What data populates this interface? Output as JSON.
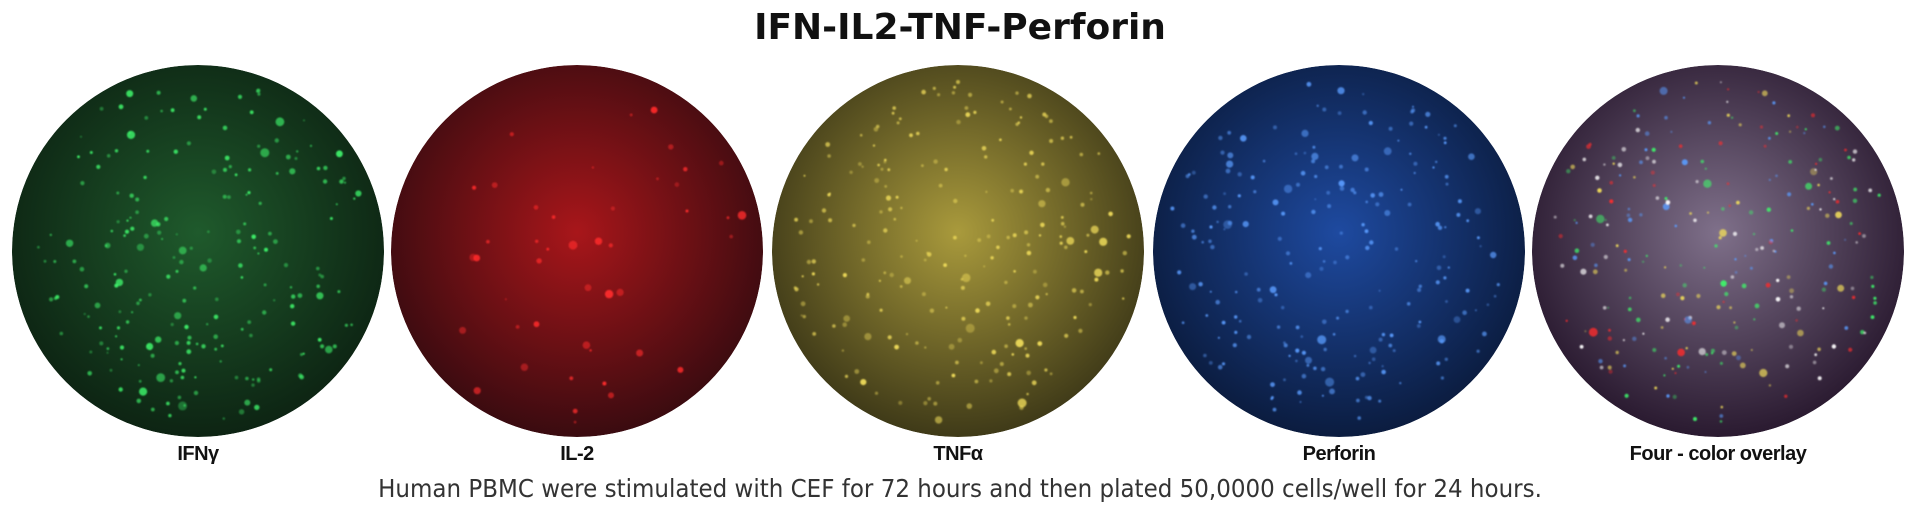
{
  "title": "IFN-IL2-TNF-Perforin",
  "caption": "Human PBMC were stimulated with CEF for 72 hours and then plated 50,0000 cells/well for 24 hours.",
  "wells": [
    {
      "label": "IFNγ",
      "bg_center": "#1f5a2c",
      "bg_edge": "#0d2413",
      "spot": "#3ef26a"
    },
    {
      "label": "IL-2",
      "bg_center": "#a8161a",
      "bg_edge": "#3a0b10",
      "spot": "#ff2a2a"
    },
    {
      "label": "TNFα",
      "bg_center": "#a99a3c",
      "bg_edge": "#3f3a18",
      "spot": "#f0dc5a"
    },
    {
      "label": "Perforin",
      "bg_center": "#1e4aa0",
      "bg_edge": "#0b1c3f",
      "spot": "#5a9cff"
    },
    {
      "label": "Four - color overlay",
      "bg_center": "#7f708a",
      "bg_edge": "#2a1a30",
      "spot": "#ffffff"
    }
  ]
}
